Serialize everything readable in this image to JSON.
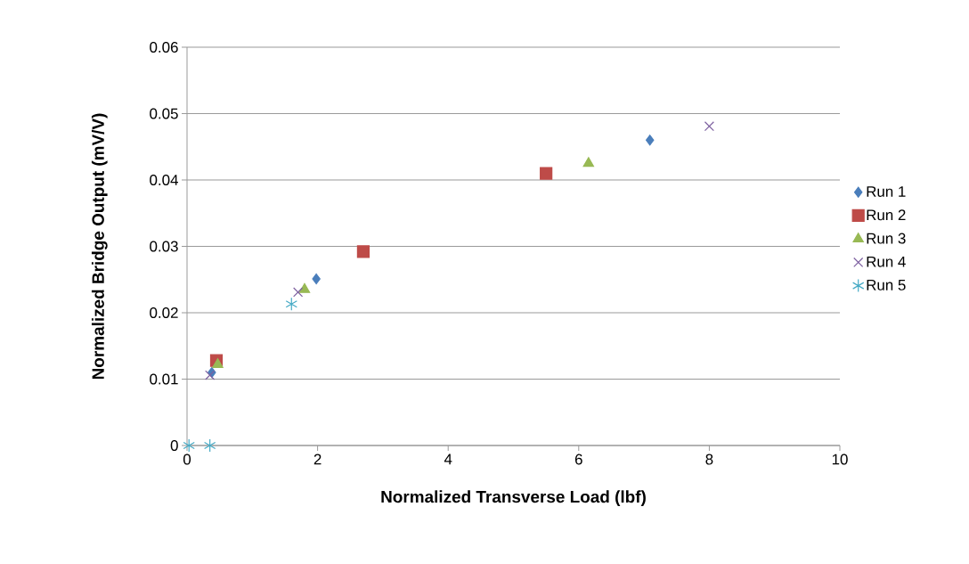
{
  "chart_data": {
    "type": "scatter",
    "xlabel": "Normalized Transverse Load (lbf)",
    "ylabel": "Normalized Bridge Output (mV/V)",
    "xlim": [
      0,
      10
    ],
    "xticks": [
      0,
      2,
      4,
      6,
      8,
      10
    ],
    "ylim": [
      0,
      0.06
    ],
    "yticks": [
      0,
      0.01,
      0.02,
      0.03,
      0.04,
      0.05,
      0.06
    ],
    "grid": "y",
    "legend": "right",
    "series": [
      {
        "name": "Run 1",
        "color": "#4a7ebb",
        "marker": "diamond",
        "x": [
          0.38,
          1.98,
          7.09
        ],
        "values": [
          0.011,
          0.0251,
          0.046
        ]
      },
      {
        "name": "Run 2",
        "color": "#be4b48",
        "marker": "square",
        "x": [
          0.45,
          2.7,
          5.5
        ],
        "values": [
          0.0128,
          0.0292,
          0.041
        ]
      },
      {
        "name": "Run 3",
        "color": "#98b954",
        "marker": "triangle",
        "x": [
          0.47,
          1.8,
          6.15
        ],
        "values": [
          0.0122,
          0.0235,
          0.0425
        ]
      },
      {
        "name": "Run 4",
        "color": "#7d60a0",
        "marker": "cross",
        "x": [
          0.35,
          1.7,
          8.0
        ],
        "values": [
          0.0106,
          0.0231,
          0.0481
        ]
      },
      {
        "name": "Run 5",
        "color": "#46aac5",
        "x": [
          0.03,
          0.35,
          1.6
        ],
        "values": [
          0.0,
          0.0,
          0.0213
        ]
      }
    ]
  }
}
